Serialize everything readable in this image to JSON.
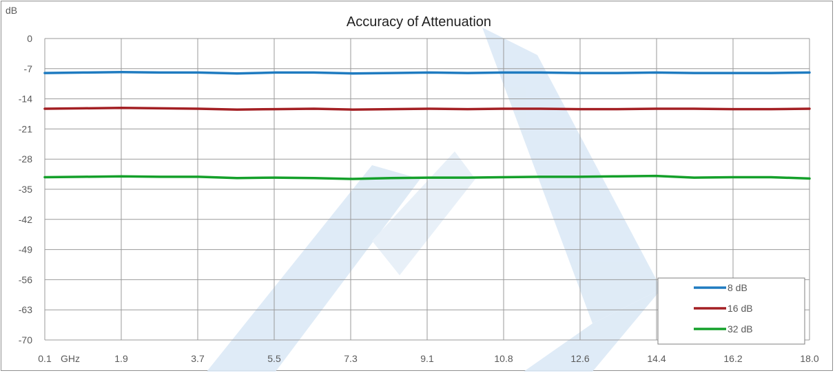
{
  "chart_data": {
    "type": "line",
    "title": "Accuracy of Attenuation",
    "ylabel": "dB",
    "xlabel": "",
    "x_unit_label": "GHz",
    "x_tick_labels": [
      "0.1",
      "1.9",
      "3.7",
      "5.5",
      "7.3",
      "9.1",
      "10.8",
      "12.6",
      "14.4",
      "16.2",
      "18.0"
    ],
    "xlim": [
      0.1,
      18.0
    ],
    "y_tick_labels": [
      "0",
      "-7",
      "-14",
      "-21",
      "-28",
      "-35",
      "-42",
      "-49",
      "-56",
      "-63",
      "-70"
    ],
    "ylim": [
      -70,
      0
    ],
    "grid": true,
    "legend_position": "bottom-right",
    "x": [
      0.1,
      1.0,
      1.9,
      2.8,
      3.7,
      4.6,
      5.5,
      6.4,
      7.3,
      8.2,
      9.1,
      10.0,
      10.8,
      11.7,
      12.6,
      13.5,
      14.4,
      15.3,
      16.2,
      17.1,
      18.0
    ],
    "series": [
      {
        "name": "8 dB",
        "color": "#1f7bc0",
        "values": [
          -8.0,
          -7.9,
          -7.8,
          -7.9,
          -7.9,
          -8.1,
          -7.9,
          -7.9,
          -8.1,
          -8.0,
          -7.9,
          -8.0,
          -7.9,
          -7.9,
          -8.0,
          -8.0,
          -7.9,
          -8.0,
          -8.0,
          -8.0,
          -7.9
        ]
      },
      {
        "name": "16 dB",
        "color": "#a31f23",
        "values": [
          -16.3,
          -16.2,
          -16.1,
          -16.2,
          -16.3,
          -16.5,
          -16.4,
          -16.3,
          -16.5,
          -16.4,
          -16.3,
          -16.4,
          -16.3,
          -16.3,
          -16.4,
          -16.4,
          -16.3,
          -16.3,
          -16.4,
          -16.4,
          -16.3
        ]
      },
      {
        "name": "32 dB",
        "color": "#14a02a",
        "values": [
          -32.2,
          -32.1,
          -32.0,
          -32.1,
          -32.1,
          -32.4,
          -32.3,
          -32.4,
          -32.6,
          -32.4,
          -32.3,
          -32.3,
          -32.2,
          -32.1,
          -32.1,
          -32.0,
          -31.9,
          -32.3,
          -32.2,
          -32.2,
          -32.5
        ]
      }
    ]
  },
  "colors": {
    "grid": "#9a9a9a",
    "watermark": "#dce9f6"
  }
}
